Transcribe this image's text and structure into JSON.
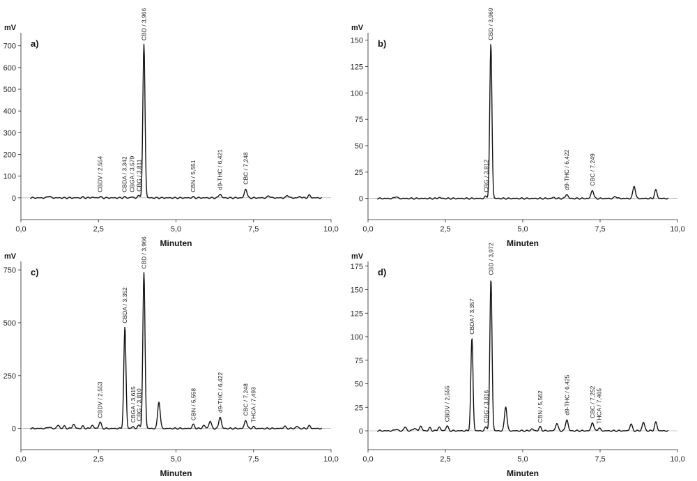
{
  "chart_data": [
    {
      "type": "line",
      "panel_label": "a)",
      "ylabel": "mV",
      "xlabel": "Minuten",
      "xlim": [
        0,
        10
      ],
      "ylim": [
        -100,
        760
      ],
      "yticks": [
        "0",
        "100",
        "200",
        "300",
        "400",
        "500",
        "600",
        "700"
      ],
      "ytick_values": [
        0,
        100,
        200,
        300,
        400,
        500,
        600,
        700
      ],
      "xticks": [
        "0,0",
        "2,5",
        "5,0",
        "7,5",
        "10,0"
      ],
      "xtick_values": [
        0,
        2.5,
        5,
        7.5,
        10
      ],
      "peaks": [
        {
          "x": 0.9,
          "y": 10
        },
        {
          "x": 2.0,
          "y": 3
        },
        {
          "x": 2.3,
          "y": 3
        },
        {
          "x": 2.554,
          "y": 5
        },
        {
          "x": 3.342,
          "y": 4
        },
        {
          "x": 3.579,
          "y": 4
        },
        {
          "x": 3.811,
          "y": 10
        },
        {
          "x": 3.966,
          "y": 705
        },
        {
          "x": 5.551,
          "y": 4
        },
        {
          "x": 6.421,
          "y": 18
        },
        {
          "x": 7.248,
          "y": 42
        },
        {
          "x": 8.0,
          "y": 10
        },
        {
          "x": 8.6,
          "y": 12
        },
        {
          "x": 9.0,
          "y": 6
        },
        {
          "x": 9.3,
          "y": 12
        }
      ],
      "annotations": [
        {
          "x": 2.554,
          "label": "CBDV / 2,554"
        },
        {
          "x": 3.342,
          "label": "CBDA / 3,342"
        },
        {
          "x": 3.579,
          "label": "CBGA / 3,579"
        },
        {
          "x": 3.811,
          "label": "CBG / 3,811"
        },
        {
          "x": 3.966,
          "label": "CBD / 3,966"
        },
        {
          "x": 5.551,
          "label": "CBN / 5,551"
        },
        {
          "x": 6.421,
          "label": "d9-THC / 6,421"
        },
        {
          "x": 7.248,
          "label": "CBC / 7,248"
        }
      ]
    },
    {
      "type": "line",
      "panel_label": "b)",
      "ylabel": "mV",
      "xlabel": "Minuten",
      "xlim": [
        0,
        10
      ],
      "ylim": [
        -20,
        157
      ],
      "yticks": [
        "0",
        "25",
        "50",
        "75",
        "100",
        "125",
        "150"
      ],
      "ytick_values": [
        0,
        25,
        50,
        75,
        100,
        125,
        150
      ],
      "xticks": [
        "0,0",
        "2,5",
        "5,0",
        "7,5",
        "10,0"
      ],
      "xtick_values": [
        0,
        2.5,
        5,
        7.5,
        10
      ],
      "peaks": [
        {
          "x": 0.9,
          "y": 2
        },
        {
          "x": 2.3,
          "y": 1
        },
        {
          "x": 3.812,
          "y": 2
        },
        {
          "x": 3.969,
          "y": 146
        },
        {
          "x": 6.0,
          "y": 1
        },
        {
          "x": 6.422,
          "y": 4
        },
        {
          "x": 7.249,
          "y": 8
        },
        {
          "x": 8.0,
          "y": 2
        },
        {
          "x": 8.6,
          "y": 12
        },
        {
          "x": 9.3,
          "y": 8
        }
      ],
      "annotations": [
        {
          "x": 3.812,
          "label": "CBG / 3,812"
        },
        {
          "x": 3.969,
          "label": "CBD / 3,969"
        },
        {
          "x": 6.422,
          "label": "d9-THC / 6,422"
        },
        {
          "x": 7.249,
          "label": "CBC / 7,249"
        }
      ]
    },
    {
      "type": "line",
      "panel_label": "c)",
      "ylabel": "mV",
      "xlabel": "Minuten",
      "xlim": [
        0,
        10
      ],
      "ylim": [
        -100,
        790
      ],
      "yticks": [
        "0",
        "250",
        "500",
        "750"
      ],
      "ytick_values": [
        0,
        250,
        500,
        750
      ],
      "xticks": [
        "0,0",
        "2,5",
        "5,0",
        "7,5",
        "10,0"
      ],
      "xtick_values": [
        0,
        2.5,
        5,
        7.5,
        10
      ],
      "peaks": [
        {
          "x": 0.9,
          "y": 8
        },
        {
          "x": 1.2,
          "y": 15
        },
        {
          "x": 1.4,
          "y": 10
        },
        {
          "x": 1.7,
          "y": 20
        },
        {
          "x": 2.0,
          "y": 10
        },
        {
          "x": 2.3,
          "y": 15
        },
        {
          "x": 2.553,
          "y": 30
        },
        {
          "x": 3.352,
          "y": 478
        },
        {
          "x": 3.615,
          "y": 8
        },
        {
          "x": 3.81,
          "y": 15
        },
        {
          "x": 3.966,
          "y": 735
        },
        {
          "x": 4.45,
          "y": 128
        },
        {
          "x": 5.558,
          "y": 18
        },
        {
          "x": 5.9,
          "y": 15
        },
        {
          "x": 6.1,
          "y": 35
        },
        {
          "x": 6.422,
          "y": 55
        },
        {
          "x": 7.248,
          "y": 40
        },
        {
          "x": 7.493,
          "y": 8
        },
        {
          "x": 8.5,
          "y": 10
        },
        {
          "x": 8.9,
          "y": 10
        },
        {
          "x": 9.3,
          "y": 12
        }
      ],
      "annotations": [
        {
          "x": 2.553,
          "label": "CBDV / 2,553"
        },
        {
          "x": 3.352,
          "label": "CBDA / 3,352"
        },
        {
          "x": 3.615,
          "label": "CBGA / 3,615"
        },
        {
          "x": 3.81,
          "label": "CBG / 3,810"
        },
        {
          "x": 3.966,
          "label": "CBD / 3,966"
        },
        {
          "x": 5.558,
          "label": "CBN / 5,558"
        },
        {
          "x": 6.422,
          "label": "d9-THC / 6,422"
        },
        {
          "x": 7.248,
          "label": "CBC / 7,248"
        },
        {
          "x": 7.493,
          "label": "THCA / 7,493"
        }
      ]
    },
    {
      "type": "line",
      "panel_label": "d)",
      "ylabel": "mV",
      "xlabel": "Minuten",
      "xlim": [
        0,
        10
      ],
      "ylim": [
        -20,
        180
      ],
      "yticks": [
        "0",
        "25",
        "50",
        "75",
        "100",
        "125",
        "150",
        "175"
      ],
      "ytick_values": [
        0,
        25,
        50,
        75,
        100,
        125,
        150,
        175
      ],
      "xticks": [
        "0,0",
        "2,5",
        "5,0",
        "7,5",
        "10,0"
      ],
      "xtick_values": [
        0,
        2.5,
        5,
        7.5,
        10
      ],
      "peaks": [
        {
          "x": 0.9,
          "y": 2
        },
        {
          "x": 1.2,
          "y": 4
        },
        {
          "x": 1.5,
          "y": 3
        },
        {
          "x": 1.7,
          "y": 5
        },
        {
          "x": 2.0,
          "y": 3
        },
        {
          "x": 2.3,
          "y": 4
        },
        {
          "x": 2.555,
          "y": 5
        },
        {
          "x": 3.357,
          "y": 98
        },
        {
          "x": 3.816,
          "y": 4
        },
        {
          "x": 3.972,
          "y": 161
        },
        {
          "x": 4.45,
          "y": 26
        },
        {
          "x": 5.3,
          "y": 2
        },
        {
          "x": 5.562,
          "y": 4
        },
        {
          "x": 6.1,
          "y": 8
        },
        {
          "x": 6.425,
          "y": 12
        },
        {
          "x": 7.252,
          "y": 9
        },
        {
          "x": 7.465,
          "y": 3
        },
        {
          "x": 8.5,
          "y": 7
        },
        {
          "x": 8.9,
          "y": 9
        },
        {
          "x": 9.3,
          "y": 9
        }
      ],
      "annotations": [
        {
          "x": 2.555,
          "label": "CBDV / 2,555"
        },
        {
          "x": 3.357,
          "label": "CBDA / 3,357"
        },
        {
          "x": 3.816,
          "label": "CBG / 3,816"
        },
        {
          "x": 3.972,
          "label": "CBD / 3,972"
        },
        {
          "x": 5.562,
          "label": "CBN / 5,562"
        },
        {
          "x": 6.425,
          "label": "d9-THC / 6,425"
        },
        {
          "x": 7.252,
          "label": "CBC / 7,252"
        },
        {
          "x": 7.465,
          "label": "THCA / 7,465"
        }
      ]
    }
  ]
}
